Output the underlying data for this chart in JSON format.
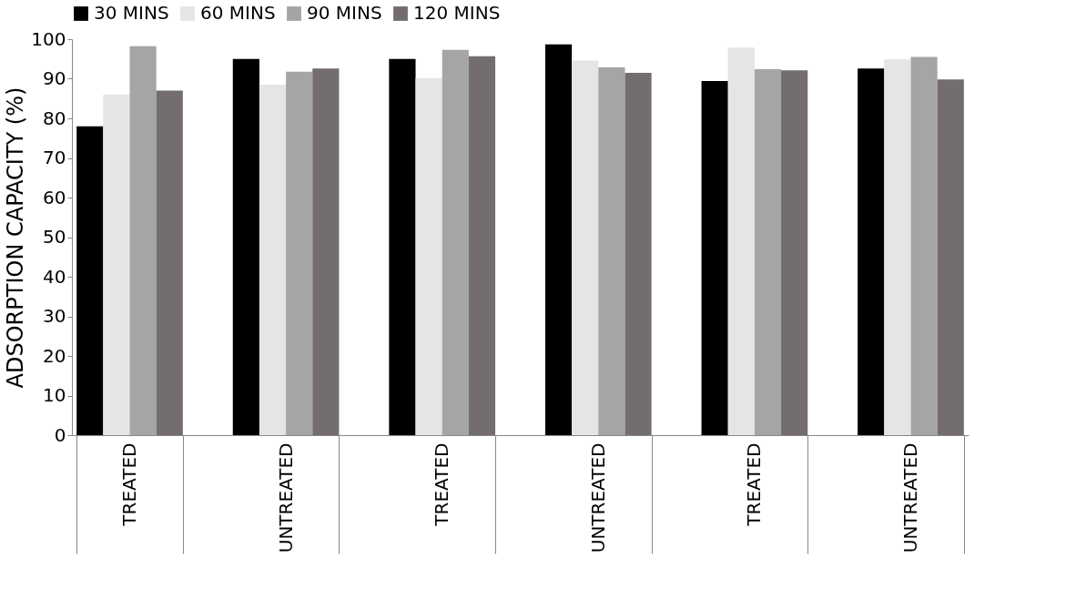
{
  "chart_data": {
    "type": "bar",
    "ylabel": "ADSORPTION CAPACITY (%)",
    "categories": [
      "TREATED",
      "UNTREATED",
      "TREATED",
      "UNTREATED",
      "TREATED",
      "UNTREATED"
    ],
    "series": [
      {
        "name": "30 MINS",
        "color": "#000000",
        "values": [
          78,
          95,
          95,
          98.7,
          89.4,
          92.6
        ]
      },
      {
        "name": "60 MINS",
        "color": "#e5e5e5",
        "values": [
          86,
          88.5,
          90.2,
          94.6,
          97.9,
          94.9
        ]
      },
      {
        "name": "90 MINS",
        "color": "#a5a5a5",
        "values": [
          98.2,
          91.8,
          97.3,
          92.9,
          92.4,
          95.5
        ]
      },
      {
        "name": "120 MINS",
        "color": "#736e6d",
        "values": [
          87,
          92.6,
          95.7,
          91.5,
          92.1,
          89.8
        ]
      }
    ],
    "ylim": [
      0,
      100
    ],
    "yticks": [
      0,
      10,
      20,
      30,
      40,
      50,
      60,
      70,
      80,
      90,
      100
    ],
    "grid": false,
    "legend": "top"
  }
}
